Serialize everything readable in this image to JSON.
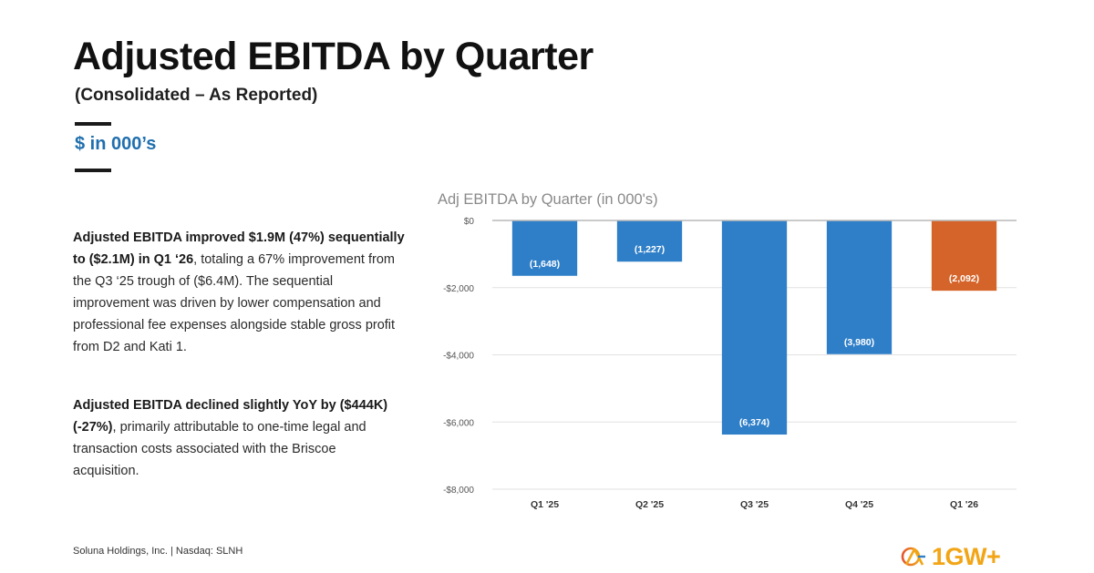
{
  "slide": {
    "title": "Adjusted EBITDA by Quarter",
    "subtitle": "(Consolidated – As Reported)",
    "units": "$ in 000’s"
  },
  "commentary": {
    "p1_bold": "Adjusted EBITDA improved $1.9M (47%) sequentially to ($2.1M) in Q1 ‘26",
    "p1_rest": ", totaling a 67% improvement from the Q3 ‘25 trough of ($6.4M). The sequential improvement was driven by lower compensation and professional fee expenses alongside stable gross profit from D2 and Kati 1.",
    "p2_bold": "Adjusted EBITDA declined slightly YoY by ($444K) (-27%)",
    "p2_rest": ", primarily attributable to one-time legal and transaction costs associated with the Briscoe acquisition."
  },
  "footer": {
    "company": "Soluna Holdings, Inc. | Nasdaq: SLNH"
  },
  "logo": {
    "text": "1GW+",
    "icon": "soluna-logo-icon",
    "color": "#f2a516"
  },
  "chart_data": {
    "type": "bar",
    "title": "Adj EBITDA by Quarter (in 000's)",
    "categories": [
      "Q1 '25",
      "Q2 '25",
      "Q3 '25",
      "Q4 '25",
      "Q1 '26"
    ],
    "values": [
      -1648,
      -1227,
      -6374,
      -3980,
      -2092
    ],
    "data_labels": [
      "(1,648)",
      "(1,227)",
      "(6,374)",
      "(3,980)",
      "(2,092)"
    ],
    "ylim": [
      -8000,
      0
    ],
    "yticks": [
      0,
      -2000,
      -4000,
      -6000,
      -8000
    ],
    "ytick_labels": [
      "$0",
      "-$2,000",
      "-$4,000",
      "-$6,000",
      "-$8,000"
    ],
    "grid": true,
    "bar_colors": [
      "#2f7fc8",
      "#2f7fc8",
      "#2f7fc8",
      "#2f7fc8",
      "#d5642a"
    ],
    "xlabel": "",
    "ylabel": ""
  }
}
